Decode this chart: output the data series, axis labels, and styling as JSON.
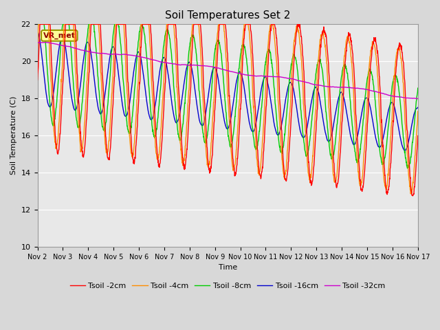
{
  "title": "Soil Temperatures Set 2",
  "xlabel": "Time",
  "ylabel": "Soil Temperature (C)",
  "ylim": [
    10,
    22
  ],
  "yticks": [
    10,
    12,
    14,
    16,
    18,
    20,
    22
  ],
  "x_tick_days": [
    2,
    3,
    4,
    5,
    6,
    7,
    8,
    9,
    10,
    11,
    12,
    13,
    14,
    15,
    16,
    17
  ],
  "x_tick_labels": [
    "Nov 2",
    "Nov 3",
    "Nov 4",
    "Nov 5",
    "Nov 6",
    "Nov 7",
    "Nov 8",
    "Nov 9",
    "Nov 10",
    "Nov 11",
    "Nov 12",
    "Nov 13",
    "Nov 14",
    "Nov 15",
    "Nov 16",
    "Nov 17"
  ],
  "series": {
    "Tsoil -2cm": {
      "color": "#ff0000",
      "lw": 1.0
    },
    "Tsoil -4cm": {
      "color": "#ff8c00",
      "lw": 1.0
    },
    "Tsoil -8cm": {
      "color": "#00cc00",
      "lw": 1.0
    },
    "Tsoil -16cm": {
      "color": "#0000cc",
      "lw": 1.0
    },
    "Tsoil -32cm": {
      "color": "#cc00cc",
      "lw": 1.0
    }
  },
  "legend_label": "VR_met",
  "bg_color": "#d8d8d8",
  "plot_bg_color": "#e8e8e8"
}
